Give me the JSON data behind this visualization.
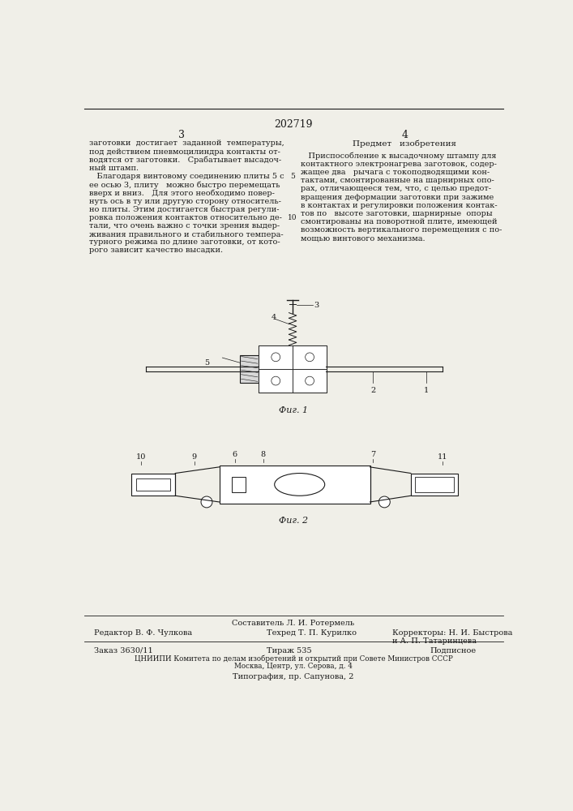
{
  "patent_number": "202719",
  "page_left": "3",
  "page_right": "4",
  "bg_color": "#f0efe8",
  "text_color": "#1a1a1a",
  "left_col_text": [
    "заготовки  достигает  заданной  температуры,",
    "под действием пневмоцилиндра контакты от-",
    "водятся от заготовки.   Срабатывает высадоч-",
    "ный штамп.",
    "   Благодаря винтовому соединению плиты 5 с",
    "ее осью 3, плиту   можно быстро перемещать",
    "вверх и вниз.   Для этого необходимо повер-",
    "нуть ось в ту или другую сторону относитель-",
    "но плиты. Этим достигается быстрая регули-",
    "ровка положения контактов относительно де-",
    "тали, что очень важно с точки зрения выдер-",
    "живания правильного и стабильного темпера-",
    "турного режима по длине заготовки, от кото-",
    "рого зависит качество высадки."
  ],
  "right_col_header": "Предмет   изобретения",
  "right_col_text": [
    "   Приспособление к высадочному штампу для",
    "контактного электронагрева заготовок, содер-",
    "жащее два   рычага с токоподводящими кон-",
    "тактами, смонтированные на шарнирных опо-",
    "рах, отличающееся тем, что, с целью предот-",
    "вращения деформации заготовки при зажиме",
    "в контактах и регулировки положения контак-",
    "тов по   высоте заготовки, шарнирные  опоры",
    "смонтированы на поворотной плите, имеющей",
    "возможность вертикального перемещения с по-",
    "мощью винтового механизма."
  ],
  "fig1_caption": "Фиг. 1",
  "fig2_caption": "Фиг. 2",
  "footer_line1_center": "Составитель Л. И. Ротермель",
  "footer_editor": "Редактор В. Ф. Чулкова",
  "footer_tech": "Техред Т. П. Курилко",
  "footer_correctors": "Корректоры: Н. И. Быстрова",
  "footer_correctors2": "и А. П. Татаринцева",
  "footer_order": "Заказ 3630/11",
  "footer_tirazh": "Тираж 535",
  "footer_podpisnoe": "Подписное",
  "footer_cniipi": "ЦНИИПИ Комитета по делам изобретений и открытий при Совете Министров СССР",
  "footer_moscow": "Москва, Центр, ул. Серова, д. 4",
  "footer_tipografiya": "Типография, пр. Сапунова, 2"
}
